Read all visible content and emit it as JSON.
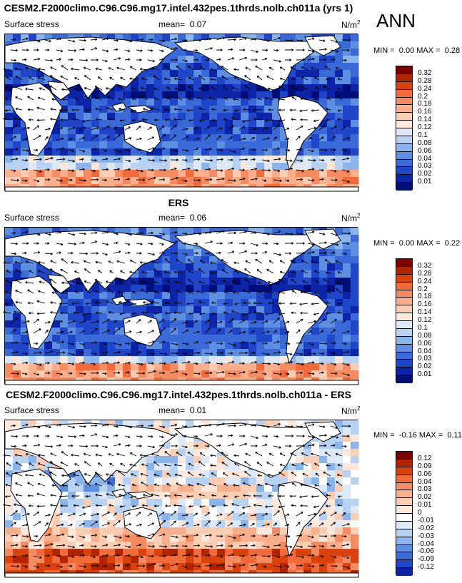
{
  "season": "ANN",
  "chart_data": [
    {
      "type": "heatmap",
      "title": "CESM2.F2000climo.C96.C96.mg17.intel.432pes.1thrds.nolb.ch011a (yrs 1)",
      "field": "Surface stress",
      "mean_label": "mean=",
      "mean_value": "0.07",
      "units": "N/m",
      "units_exp": "2",
      "min_label": "MIN =",
      "min_value": "0.00",
      "max_label": "MAX =",
      "max_value": "0.28",
      "levels": [
        "0.32",
        "0.28",
        "0.24",
        "0.2",
        "0.18",
        "0.16",
        "0.14",
        "0.12",
        "0.1",
        "0.08",
        "0.06",
        "0.04",
        "0.03",
        "0.02",
        "0.01"
      ],
      "colors": [
        "#7d0000",
        "#b22400",
        "#d9420a",
        "#f06a3a",
        "#f58c61",
        "#f9ae8c",
        "#fbcdb3",
        "#fde8db",
        "#dde9f7",
        "#b7d2f2",
        "#8ab5ec",
        "#5c8fe2",
        "#3a6ad8",
        "#1f45c8",
        "#0b24a8",
        "#000e7a"
      ]
    },
    {
      "type": "heatmap",
      "title": "ERS",
      "field": "Surface stress",
      "mean_label": "mean=",
      "mean_value": "0.06",
      "units": "N/m",
      "units_exp": "2",
      "min_label": "MIN =",
      "min_value": "0.00",
      "max_label": "MAX =",
      "max_value": "0.22",
      "levels": [
        "0.32",
        "0.28",
        "0.24",
        "0.2",
        "0.18",
        "0.16",
        "0.14",
        "0.12",
        "0.1",
        "0.08",
        "0.06",
        "0.04",
        "0.03",
        "0.02",
        "0.01"
      ],
      "colors": [
        "#7d0000",
        "#b22400",
        "#d9420a",
        "#f06a3a",
        "#f58c61",
        "#f9ae8c",
        "#fbcdb3",
        "#fde8db",
        "#dde9f7",
        "#b7d2f2",
        "#8ab5ec",
        "#5c8fe2",
        "#3a6ad8",
        "#1f45c8",
        "#0b24a8",
        "#000e7a"
      ]
    },
    {
      "type": "heatmap",
      "title": "CESM2.F2000climo.C96.C96.mg17.intel.432pes.1thrds.nolb.ch011a - ERS",
      "field": "Surface stress",
      "mean_label": "mean=",
      "mean_value": "0.01",
      "units": "N/m",
      "units_exp": "2",
      "min_label": "MIN =",
      "min_value": "-0.16",
      "max_label": "MAX =",
      "max_value": "0.11",
      "levels": [
        "0.12",
        "0.09",
        "0.06",
        "0.04",
        "0.03",
        "0.02",
        "0.01",
        "0",
        "-0.01",
        "-0.02",
        "-0.03",
        "-0.04",
        "-0.06",
        "-0.09",
        "-0.12"
      ],
      "colors": [
        "#7d0000",
        "#b22400",
        "#d9420a",
        "#f06a3a",
        "#f58c61",
        "#f9ae8c",
        "#fbcdb3",
        "#fde8db",
        "#ffffff",
        "#dde9f7",
        "#b7d2f2",
        "#8ab5ec",
        "#5c8fe2",
        "#3a6ad8",
        "#1f45c8",
        "#0b24a8"
      ]
    }
  ]
}
